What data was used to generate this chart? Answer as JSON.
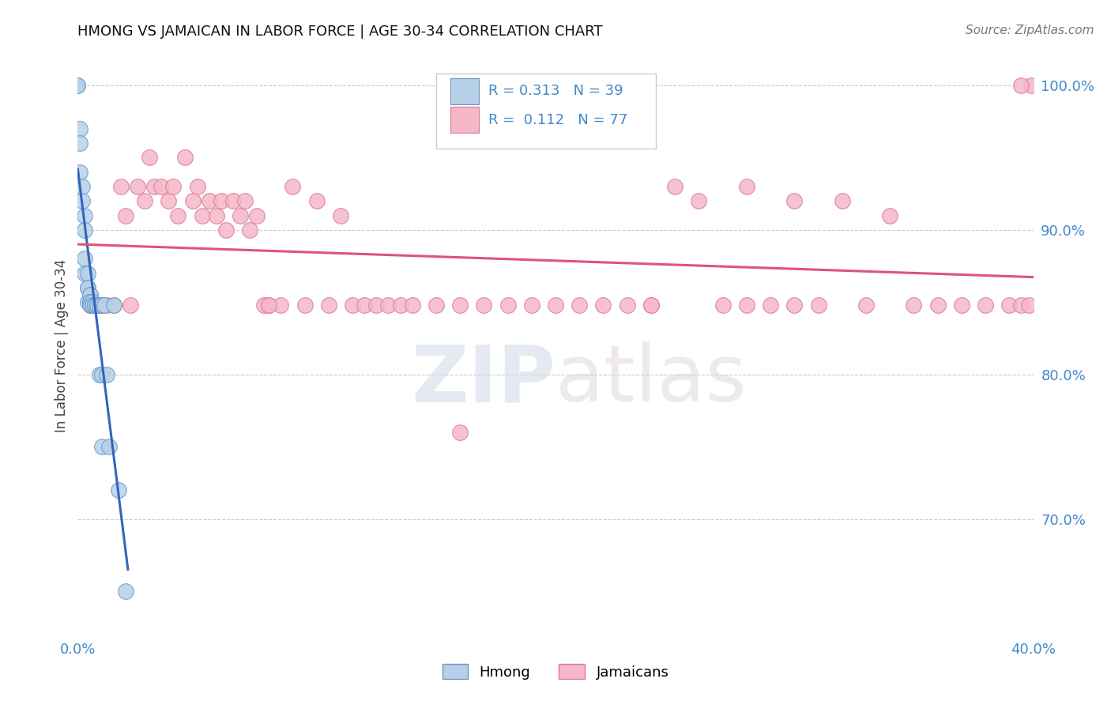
{
  "title": "HMONG VS JAMAICAN IN LABOR FORCE | AGE 30-34 CORRELATION CHART",
  "source": "Source: ZipAtlas.com",
  "ylabel_label": "In Labor Force | Age 30-34",
  "watermark": "ZIPatlas",
  "xlim": [
    0.0,
    0.4
  ],
  "ylim": [
    0.62,
    1.02
  ],
  "hmong_R": "0.313",
  "hmong_N": "39",
  "jamaican_R": "0.112",
  "jamaican_N": "77",
  "hmong_color": "#b8d0e8",
  "hmong_edge_color": "#6699cc",
  "jamaican_color": "#f5b8c8",
  "jamaican_edge_color": "#dd7799",
  "trend_hmong_color": "#3366bb",
  "trend_jamaican_color": "#dd5577",
  "grid_color": "#cccccc",
  "background_color": "#ffffff",
  "title_color": "#111111",
  "axis_color": "#4488cc",
  "source_color": "#777777",
  "hmong_x": [
    0.0,
    0.0,
    0.001,
    0.001,
    0.001,
    0.002,
    0.002,
    0.003,
    0.003,
    0.003,
    0.003,
    0.004,
    0.004,
    0.004,
    0.004,
    0.005,
    0.005,
    0.005,
    0.005,
    0.005,
    0.006,
    0.006,
    0.006,
    0.007,
    0.007,
    0.007,
    0.008,
    0.008,
    0.009,
    0.009,
    0.01,
    0.01,
    0.01,
    0.011,
    0.012,
    0.013,
    0.015,
    0.017,
    0.02
  ],
  "hmong_y": [
    1.0,
    1.0,
    0.97,
    0.96,
    0.94,
    0.93,
    0.92,
    0.91,
    0.9,
    0.88,
    0.87,
    0.87,
    0.86,
    0.86,
    0.85,
    0.855,
    0.855,
    0.85,
    0.85,
    0.848,
    0.85,
    0.848,
    0.848,
    0.848,
    0.848,
    0.848,
    0.848,
    0.848,
    0.848,
    0.8,
    0.848,
    0.8,
    0.75,
    0.848,
    0.8,
    0.75,
    0.848,
    0.72,
    0.65
  ],
  "jamaican_x": [
    0.005,
    0.008,
    0.01,
    0.012,
    0.015,
    0.018,
    0.02,
    0.022,
    0.025,
    0.028,
    0.03,
    0.032,
    0.035,
    0.038,
    0.04,
    0.042,
    0.045,
    0.048,
    0.05,
    0.052,
    0.055,
    0.058,
    0.06,
    0.062,
    0.065,
    0.068,
    0.07,
    0.072,
    0.075,
    0.078,
    0.08,
    0.085,
    0.09,
    0.095,
    0.1,
    0.105,
    0.11,
    0.115,
    0.12,
    0.125,
    0.13,
    0.135,
    0.14,
    0.15,
    0.16,
    0.17,
    0.18,
    0.19,
    0.2,
    0.21,
    0.22,
    0.23,
    0.24,
    0.25,
    0.26,
    0.27,
    0.28,
    0.29,
    0.3,
    0.31,
    0.32,
    0.33,
    0.34,
    0.35,
    0.36,
    0.37,
    0.38,
    0.39,
    0.395,
    0.398,
    0.399,
    0.28,
    0.3,
    0.24,
    0.16,
    0.08,
    0.395
  ],
  "jamaican_y": [
    0.848,
    0.848,
    0.848,
    0.848,
    0.848,
    0.93,
    0.91,
    0.848,
    0.93,
    0.92,
    0.95,
    0.93,
    0.93,
    0.92,
    0.93,
    0.91,
    0.95,
    0.92,
    0.93,
    0.91,
    0.92,
    0.91,
    0.92,
    0.9,
    0.92,
    0.91,
    0.92,
    0.9,
    0.91,
    0.848,
    0.848,
    0.848,
    0.93,
    0.848,
    0.92,
    0.848,
    0.91,
    0.848,
    0.848,
    0.848,
    0.848,
    0.848,
    0.848,
    0.848,
    0.76,
    0.848,
    0.848,
    0.848,
    0.848,
    0.848,
    0.848,
    0.848,
    0.848,
    0.93,
    0.92,
    0.848,
    0.848,
    0.848,
    0.848,
    0.848,
    0.92,
    0.848,
    0.91,
    0.848,
    0.848,
    0.848,
    0.848,
    0.848,
    0.848,
    0.848,
    1.0,
    0.93,
    0.92,
    0.848,
    0.848,
    0.848,
    1.0
  ]
}
